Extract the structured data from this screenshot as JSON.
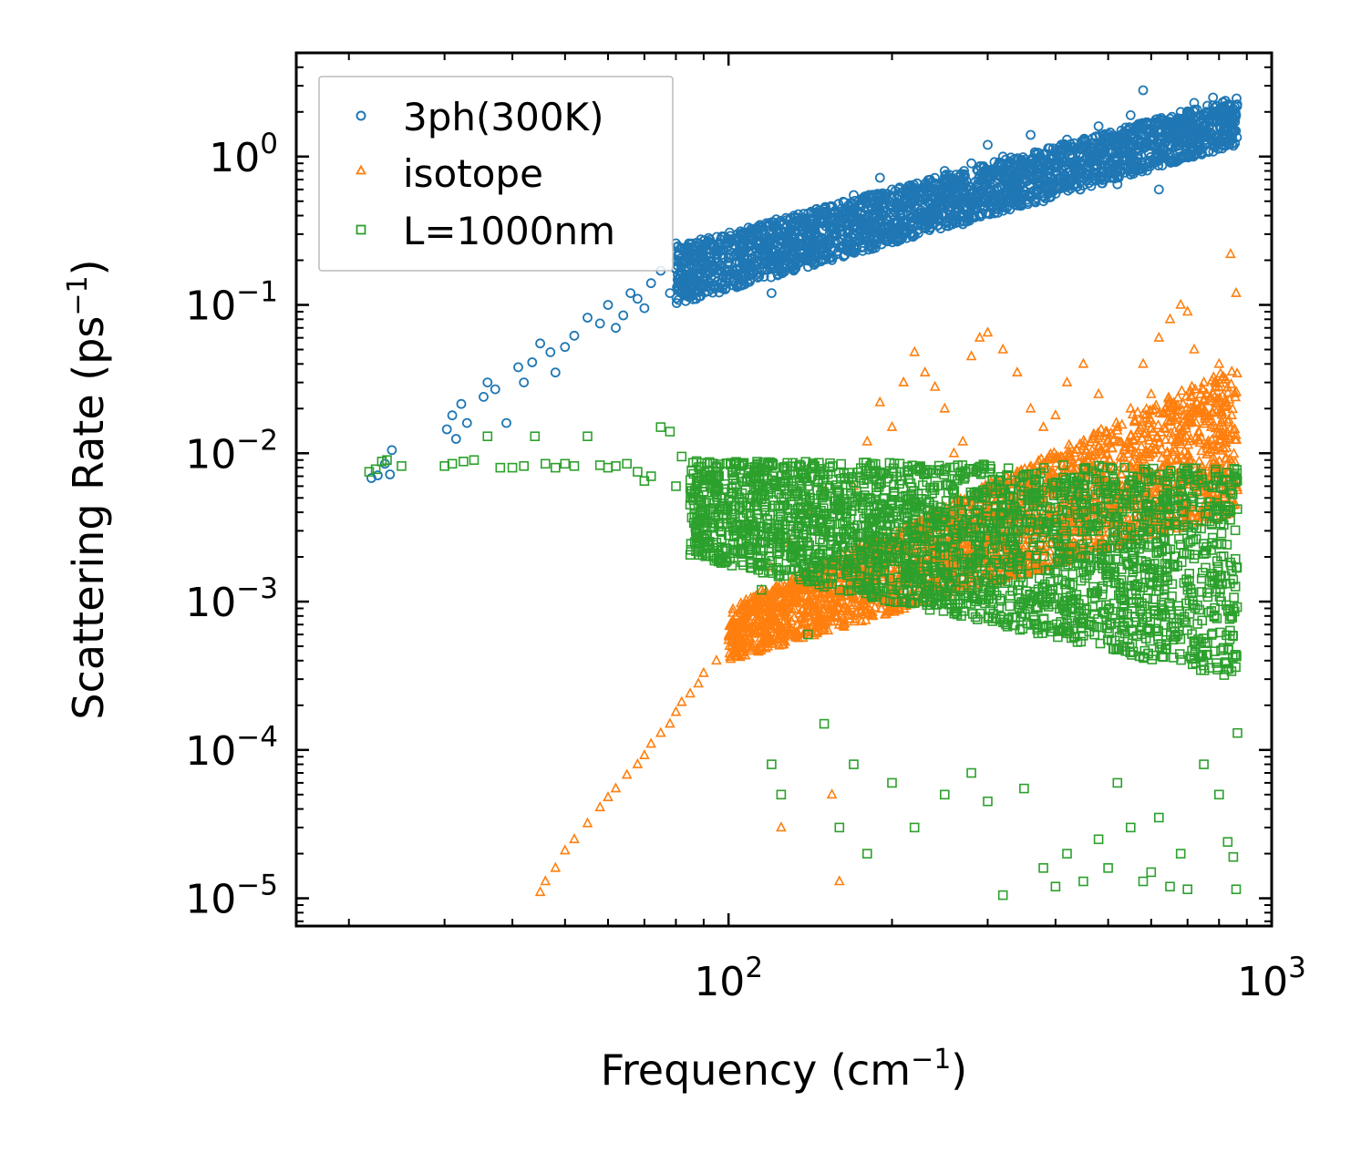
{
  "chart_data": {
    "type": "scatter",
    "title": "",
    "xlabel": "Frequency (cm",
    "xlabel_sup": "−1",
    "xlabel_close": ")",
    "ylabel": "Scattering Rate (ps",
    "ylabel_sup": "−1",
    "ylabel_close": ")",
    "xscale": "log",
    "yscale": "log",
    "xlim": [
      16,
      1000
    ],
    "ylim": [
      6.5e-06,
      5
    ],
    "xticks": [
      {
        "base": "10",
        "exp": "2",
        "value": 100
      },
      {
        "base": "10",
        "exp": "3",
        "value": 1000
      }
    ],
    "yticks": [
      {
        "base": "10",
        "exp": "0",
        "value": 1
      },
      {
        "base": "10",
        "exp": "−1",
        "value": 0.1
      },
      {
        "base": "10",
        "exp": "−2",
        "value": 0.01
      },
      {
        "base": "10",
        "exp": "−3",
        "value": 0.001
      },
      {
        "base": "10",
        "exp": "−4",
        "value": 0.0001
      },
      {
        "base": "10",
        "exp": "−5",
        "value": 1e-05
      }
    ],
    "legend_position": "top-left",
    "series": [
      {
        "name": "3ph(300K)",
        "marker": "circle",
        "color": "#1f77b4",
        "points": [
          [
            22,
            0.0068
          ],
          [
            22.6,
            0.0071
          ],
          [
            23.3,
            0.0085
          ],
          [
            23.8,
            0.0072
          ],
          [
            24,
            0.0105
          ],
          [
            30.3,
            0.0145
          ],
          [
            31,
            0.018
          ],
          [
            31.5,
            0.0125
          ],
          [
            32.2,
            0.0215
          ],
          [
            33,
            0.016
          ],
          [
            35.4,
            0.024
          ],
          [
            36,
            0.03
          ],
          [
            37.2,
            0.027
          ],
          [
            39,
            0.016
          ],
          [
            41,
            0.038
          ],
          [
            42,
            0.03
          ],
          [
            43.5,
            0.041
          ],
          [
            45,
            0.055
          ],
          [
            47,
            0.048
          ],
          [
            48,
            0.035
          ],
          [
            50,
            0.052
          ],
          [
            52,
            0.062
          ],
          [
            55,
            0.082
          ],
          [
            58,
            0.075
          ],
          [
            60,
            0.1
          ],
          [
            62,
            0.07
          ],
          [
            64,
            0.085
          ],
          [
            66,
            0.12
          ],
          [
            68,
            0.11
          ],
          [
            70,
            0.095
          ],
          [
            72,
            0.14
          ],
          [
            75,
            0.17
          ],
          [
            78,
            0.12
          ],
          [
            80,
            0.26
          ],
          [
            82,
            0.19
          ],
          [
            85,
            0.22
          ],
          [
            88,
            0.16
          ],
          [
            90,
            0.27
          ],
          [
            95,
            0.24
          ],
          [
            100,
            0.21
          ],
          [
            105,
            0.25
          ],
          [
            110,
            0.19
          ],
          [
            115,
            0.3
          ],
          [
            120,
            0.12
          ],
          [
            125,
            0.28
          ],
          [
            130,
            0.35
          ],
          [
            140,
            0.33
          ],
          [
            150,
            0.42
          ],
          [
            160,
            0.36
          ],
          [
            170,
            0.55
          ],
          [
            180,
            0.48
          ],
          [
            190,
            0.72
          ],
          [
            200,
            0.6
          ],
          [
            210,
            0.5
          ],
          [
            220,
            0.55
          ],
          [
            230,
            0.62
          ],
          [
            240,
            0.58
          ],
          [
            250,
            0.8
          ],
          [
            260,
            0.7
          ],
          [
            270,
            0.35
          ],
          [
            280,
            0.9
          ],
          [
            290,
            0.75
          ],
          [
            300,
            1.2
          ],
          [
            320,
            1.0
          ],
          [
            340,
            0.8
          ],
          [
            360,
            1.4
          ],
          [
            380,
            0.5
          ],
          [
            400,
            1.1
          ],
          [
            420,
            1.3
          ],
          [
            450,
            1.0
          ],
          [
            480,
            1.6
          ],
          [
            500,
            1.2
          ],
          [
            520,
            0.65
          ],
          [
            550,
            1.9
          ],
          [
            580,
            2.8
          ],
          [
            600,
            1.5
          ],
          [
            620,
            0.6
          ],
          [
            650,
            1.8
          ],
          [
            680,
            2.0
          ],
          [
            700,
            1.7
          ],
          [
            720,
            2.3
          ],
          [
            750,
            1.9
          ],
          [
            780,
            2.5
          ],
          [
            800,
            2.0
          ],
          [
            820,
            1.8
          ],
          [
            850,
            2.1
          ],
          [
            860,
            1.9
          ]
        ],
        "band": {
          "x_start": 80,
          "x_end": 865,
          "y_start_low": 0.1,
          "y_start_high": 0.25,
          "y_end_low": 1.2,
          "y_end_high": 2.5
        }
      },
      {
        "name": "isotope",
        "marker": "triangle",
        "color": "#ff7f0e",
        "points": [
          [
            45,
            1.1e-05
          ],
          [
            46,
            1.3e-05
          ],
          [
            48,
            1.6e-05
          ],
          [
            50,
            2.1e-05
          ],
          [
            52,
            2.5e-05
          ],
          [
            55,
            3.2e-05
          ],
          [
            58,
            4.1e-05
          ],
          [
            60,
            4.8e-05
          ],
          [
            62,
            5.5e-05
          ],
          [
            65,
            6.8e-05
          ],
          [
            68,
            8e-05
          ],
          [
            70,
            9.2e-05
          ],
          [
            72,
            0.00011
          ],
          [
            75,
            0.00013
          ],
          [
            78,
            0.00015
          ],
          [
            80,
            0.00018
          ],
          [
            82,
            0.00021
          ],
          [
            85,
            0.00024
          ],
          [
            88,
            0.00028
          ],
          [
            90,
            0.00033
          ],
          [
            95,
            0.0004
          ],
          [
            100,
            0.00055
          ],
          [
            105,
            0.00075
          ],
          [
            110,
            0.00095
          ],
          [
            115,
            0.0012
          ],
          [
            120,
            0.0017
          ],
          [
            125,
            3e-05
          ],
          [
            130,
            0.0025
          ],
          [
            140,
            0.004
          ],
          [
            150,
            0.0055
          ],
          [
            155,
            5e-05
          ],
          [
            160,
            1.3e-05
          ],
          [
            170,
            0.006
          ],
          [
            180,
            0.012
          ],
          [
            190,
            0.022
          ],
          [
            200,
            0.015
          ],
          [
            210,
            0.03
          ],
          [
            220,
            0.048
          ],
          [
            230,
            0.035
          ],
          [
            240,
            0.028
          ],
          [
            250,
            0.02
          ],
          [
            260,
            0.01
          ],
          [
            270,
            0.012
          ],
          [
            280,
            0.045
          ],
          [
            290,
            0.06
          ],
          [
            300,
            0.065
          ],
          [
            320,
            0.05
          ],
          [
            340,
            0.035
          ],
          [
            360,
            0.02
          ],
          [
            380,
            0.015
          ],
          [
            400,
            0.018
          ],
          [
            420,
            0.03
          ],
          [
            450,
            0.04
          ],
          [
            480,
            0.025
          ],
          [
            500,
            0.012
          ],
          [
            520,
            0.015
          ],
          [
            550,
            0.02
          ],
          [
            580,
            0.04
          ],
          [
            600,
            0.025
          ],
          [
            620,
            0.06
          ],
          [
            650,
            0.08
          ],
          [
            680,
            0.1
          ],
          [
            700,
            0.09
          ],
          [
            720,
            0.05
          ],
          [
            750,
            0.03
          ],
          [
            780,
            0.025
          ],
          [
            800,
            0.04
          ],
          [
            820,
            0.013
          ],
          [
            840,
            0.22
          ],
          [
            860,
            0.12
          ]
        ],
        "band": {
          "x_start": 100,
          "x_end": 865,
          "y_start_low": 0.0004,
          "y_start_high": 0.0009,
          "y_end_low": 0.004,
          "y_end_high": 0.04
        }
      },
      {
        "name": "L=1000nm",
        "marker": "square",
        "color": "#2ca02c",
        "points": [
          [
            21.8,
            0.0075
          ],
          [
            22.4,
            0.0078
          ],
          [
            23,
            0.0088
          ],
          [
            23.5,
            0.009
          ],
          [
            25,
            0.0082
          ],
          [
            30,
            0.0082
          ],
          [
            31,
            0.0085
          ],
          [
            32.5,
            0.0088
          ],
          [
            34,
            0.009
          ],
          [
            36,
            0.013
          ],
          [
            38,
            0.008
          ],
          [
            40,
            0.008
          ],
          [
            42,
            0.0082
          ],
          [
            44,
            0.013
          ],
          [
            46,
            0.0085
          ],
          [
            48,
            0.008
          ],
          [
            50,
            0.0085
          ],
          [
            52,
            0.0082
          ],
          [
            55,
            0.013
          ],
          [
            58,
            0.0083
          ],
          [
            60,
            0.008
          ],
          [
            62,
            0.0082
          ],
          [
            65,
            0.0085
          ],
          [
            68,
            0.0075
          ],
          [
            70,
            0.0065
          ],
          [
            72,
            0.007
          ],
          [
            75,
            0.015
          ],
          [
            78,
            0.014
          ],
          [
            80,
            0.006
          ],
          [
            82,
            0.0095
          ],
          [
            85,
            0.0045
          ],
          [
            88,
            0.0035
          ],
          [
            90,
            0.0055
          ],
          [
            95,
            0.0025
          ],
          [
            100,
            0.0028
          ],
          [
            105,
            0.0022
          ],
          [
            110,
            0.0018
          ],
          [
            115,
            0.0012
          ],
          [
            120,
            8e-05
          ],
          [
            125,
            5e-05
          ],
          [
            130,
            0.0035
          ],
          [
            140,
            0.0006
          ],
          [
            150,
            0.00015
          ],
          [
            160,
            3e-05
          ],
          [
            170,
            8e-05
          ],
          [
            180,
            2e-05
          ],
          [
            200,
            6e-05
          ],
          [
            220,
            3e-05
          ],
          [
            250,
            5e-05
          ],
          [
            280,
            7e-05
          ],
          [
            300,
            4.5e-05
          ],
          [
            320,
            1.05e-05
          ],
          [
            350,
            5.5e-05
          ],
          [
            380,
            1.6e-05
          ],
          [
            400,
            1.2e-05
          ],
          [
            420,
            2e-05
          ],
          [
            450,
            1.3e-05
          ],
          [
            480,
            2.5e-05
          ],
          [
            500,
            1.6e-05
          ],
          [
            520,
            6e-05
          ],
          [
            550,
            3e-05
          ],
          [
            580,
            1.3e-05
          ],
          [
            600,
            1.5e-05
          ],
          [
            620,
            3.5e-05
          ],
          [
            650,
            1.2e-05
          ],
          [
            680,
            2e-05
          ],
          [
            700,
            1.15e-05
          ],
          [
            750,
            8e-05
          ],
          [
            800,
            5e-05
          ],
          [
            830,
            2.4e-05
          ],
          [
            850,
            1.9e-05
          ],
          [
            860,
            1.15e-05
          ],
          [
            865,
            0.00013
          ]
        ],
        "band": {
          "x_start": 85,
          "x_end": 865,
          "y_start_low": 0.002,
          "y_start_high": 0.009,
          "y_end_low": 0.0003,
          "y_end_high": 0.008
        }
      }
    ]
  }
}
